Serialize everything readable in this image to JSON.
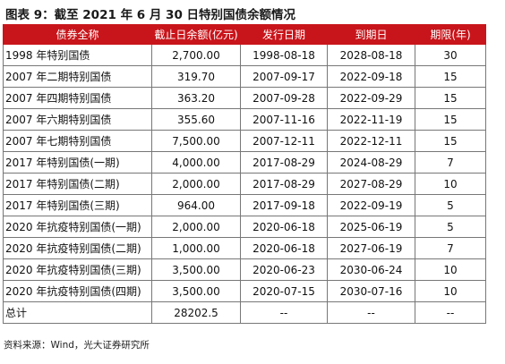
{
  "title": "图表 9：截至 2021 年 6 月 30 日特别国债余额情况",
  "table": {
    "headers": [
      "债券全称",
      "截止日余额(亿元)",
      "发行日期",
      "到期日",
      "期限(年)"
    ],
    "rows": [
      [
        "1998 年特别国债",
        "2,700.00",
        "1998-08-18",
        "2028-08-18",
        "30"
      ],
      [
        "2007 年二期特别国债",
        "319.70",
        "2007-09-17",
        "2022-09-18",
        "15"
      ],
      [
        "2007 年四期特别国债",
        "363.20",
        "2007-09-28",
        "2022-09-29",
        "15"
      ],
      [
        "2007 年六期特别国债",
        "355.60",
        "2007-11-16",
        "2022-11-19",
        "15"
      ],
      [
        "2007 年七期特别国债",
        "7,500.00",
        "2007-12-11",
        "2022-12-11",
        "15"
      ],
      [
        "2017 年特别国债(一期)",
        "4,000.00",
        "2017-08-29",
        "2024-08-29",
        "7"
      ],
      [
        "2017 年特别国债(二期)",
        "2,000.00",
        "2017-08-29",
        "2027-08-29",
        "10"
      ],
      [
        "2017 年特别国债(三期)",
        "964.00",
        "2017-09-18",
        "2022-09-19",
        "5"
      ],
      [
        "2020 年抗疫特别国债(一期)",
        "2,000.00",
        "2020-06-18",
        "2025-06-19",
        "5"
      ],
      [
        "2020 年抗疫特别国债(二期)",
        "1,000.00",
        "2020-06-18",
        "2027-06-19",
        "7"
      ],
      [
        "2020 年抗疫特别国债(三期)",
        "3,500.00",
        "2020-06-23",
        "2030-06-24",
        "10"
      ],
      [
        "2020 年抗疫特别国债(四期)",
        "3,500.00",
        "2020-07-15",
        "2030-07-16",
        "10"
      ],
      [
        "总计",
        "28202.5",
        "--",
        "--",
        "--"
      ]
    ]
  },
  "source": "资料来源：Wind，光大证券研究所",
  "colors": {
    "header_bg": "#c8151b",
    "header_text": "#ffffff",
    "border": "#777777"
  }
}
